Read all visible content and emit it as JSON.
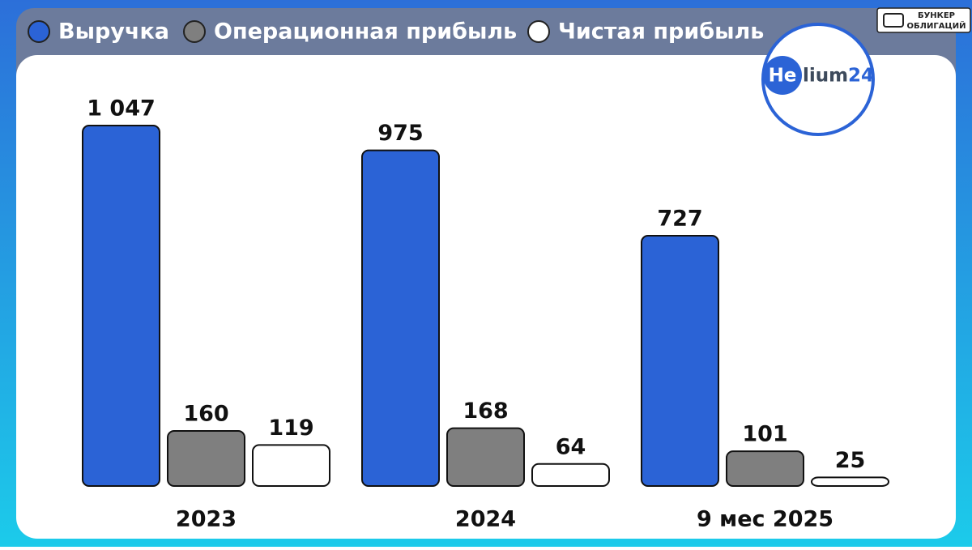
{
  "chart_data": {
    "type": "bar",
    "categories": [
      "2023",
      "2024",
      "9 мес 2025"
    ],
    "series": [
      {
        "name": "Выручка",
        "color": "#2b63d6",
        "values": [
          1047,
          975,
          727
        ],
        "value_labels": [
          "1 047",
          "975",
          "727"
        ]
      },
      {
        "name": "Операционная прибыль",
        "color": "#7f7f7f",
        "values": [
          160,
          168,
          101
        ]
      },
      {
        "name": "Чистая прибыль",
        "color": "#ffffff",
        "values": [
          119,
          64,
          25
        ]
      }
    ]
  },
  "logo": {
    "parts": [
      "He",
      "lium",
      "24"
    ]
  },
  "badge": {
    "lines": [
      "БУНКЕР",
      "ОБЛИГАЦИЙ"
    ]
  }
}
